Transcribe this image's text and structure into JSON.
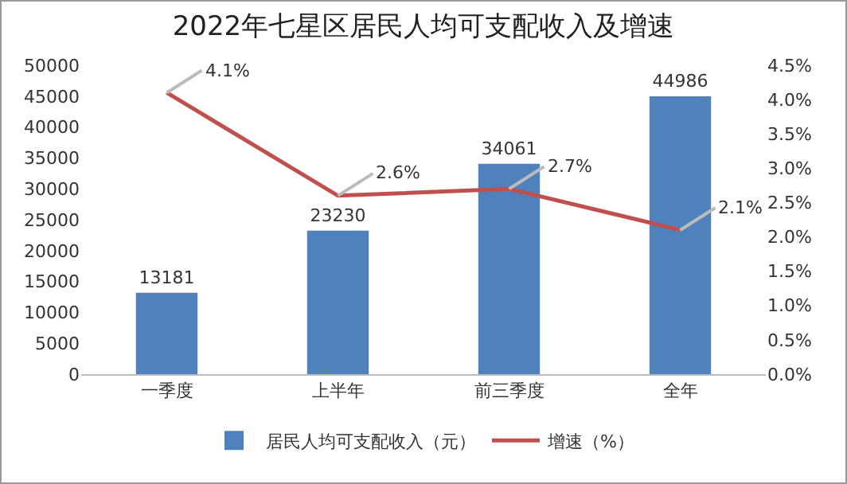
{
  "chart_data": {
    "type": "bar",
    "title": "2022年七星区居民人均可支配收入及增速",
    "categories": [
      "一季度",
      "上半年",
      "前三季度",
      "全年"
    ],
    "series": [
      {
        "name": "居民人均可支配收入（元）",
        "color": "#4f81bd",
        "values": [
          13181,
          23230,
          34061,
          44986
        ],
        "value_labels": [
          "13181",
          "23230",
          "34061",
          "44986"
        ]
      },
      {
        "name": "增速（%）",
        "type": "line",
        "axis": "y2",
        "color": "#c0504d",
        "values": [
          4.1,
          2.6,
          2.7,
          2.1
        ],
        "value_labels": [
          "4.1%",
          "2.6%",
          "2.7%",
          "2.1%"
        ],
        "marker": "none"
      }
    ],
    "ylim": [
      0,
      50000
    ],
    "yticks": [
      0,
      5000,
      10000,
      15000,
      20000,
      25000,
      30000,
      35000,
      40000,
      45000,
      50000
    ],
    "y2lim": [
      0,
      4.5
    ],
    "y2ticks": [
      {
        "value": 0,
        "label": "0.0%"
      },
      {
        "value": 0.5,
        "label": "0.5%"
      },
      {
        "value": 1,
        "label": "1.0%"
      },
      {
        "value": 1.5,
        "label": "1.5%"
      },
      {
        "value": 2,
        "label": "2.0%"
      },
      {
        "value": 2.5,
        "label": "2.5%"
      },
      {
        "value": 3,
        "label": "3.0%"
      },
      {
        "value": 3.5,
        "label": "3.5%"
      },
      {
        "value": 4,
        "label": "4.0%"
      },
      {
        "value": 4.5,
        "label": "4.5%"
      }
    ],
    "grid": false,
    "legend": "bottom"
  }
}
